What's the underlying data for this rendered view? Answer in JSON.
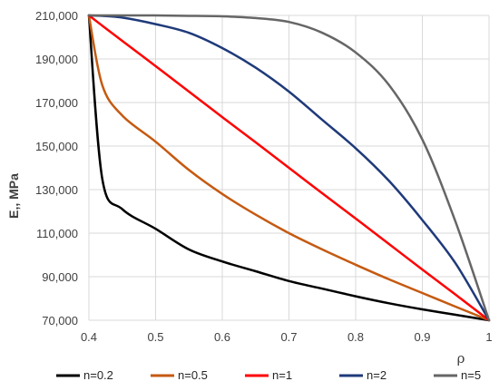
{
  "chart_data": {
    "type": "line",
    "xlabel": "ρ",
    "ylabel": "E,, MPa",
    "xlim": [
      0.4,
      1
    ],
    "ylim": [
      70000,
      210000
    ],
    "x_ticks": [
      "0.4",
      "0.5",
      "0.6",
      "0.7",
      "0.8",
      "0.9",
      "1"
    ],
    "y_ticks": [
      "70,000",
      "90,000",
      "110,000",
      "130,000",
      "150,000",
      "170,000",
      "190,000",
      "210,000"
    ],
    "grid": true,
    "legend_position": "bottom",
    "x": [
      0.4,
      0.42,
      0.45,
      0.5,
      0.55,
      0.6,
      0.65,
      0.7,
      0.75,
      0.8,
      0.85,
      0.9,
      0.95,
      1.0
    ],
    "series": [
      {
        "name": "n=0.2",
        "color": "#000000",
        "values": [
          210000,
          135000,
          121000,
          112000,
          102500,
          97000,
          92500,
          88000,
          84500,
          81000,
          77800,
          75000,
          72500,
          70000
        ]
      },
      {
        "name": "n=0.5",
        "color": "#c55a11",
        "values": [
          210000,
          178000,
          164000,
          152000,
          139000,
          128000,
          118500,
          110000,
          102500,
          95500,
          88800,
          82500,
          76200,
          70000
        ]
      },
      {
        "name": "n=1",
        "color": "#ff0000",
        "values": [
          210000,
          205300,
          198300,
          186700,
          175000,
          163300,
          151700,
          140000,
          128300,
          116700,
          105000,
          93300,
          81700,
          70000
        ]
      },
      {
        "name": "n=2",
        "color": "#1f3a7a",
        "values": [
          210000,
          209800,
          209000,
          206000,
          202000,
          195000,
          186000,
          175000,
          162000,
          149000,
          134000,
          116000,
          96000,
          70000
        ]
      },
      {
        "name": "n=5",
        "color": "#666666",
        "values": [
          210000,
          210000,
          210000,
          210000,
          209800,
          209600,
          208800,
          207000,
          202000,
          193000,
          178000,
          153000,
          115000,
          70000
        ]
      }
    ]
  }
}
